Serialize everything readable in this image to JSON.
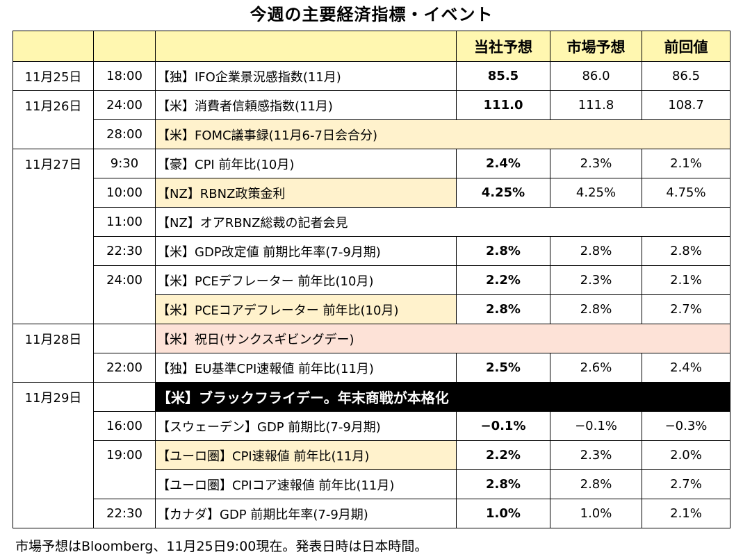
{
  "title": "今週の主要経済指標・イベント",
  "header": {
    "own_forecast": "当社予想",
    "market_forecast": "市場予想",
    "previous": "前回値"
  },
  "rows": [
    {
      "date": "11月25日",
      "time": "18:00",
      "event": "【独】IFO企業景況感指数(11月)",
      "own": "85.5",
      "market": "86.0",
      "prev": "86.5",
      "style": "normal"
    },
    {
      "date": "11月26日",
      "time": "24:00",
      "event": "【米】消費者信頼感指数(11月)",
      "own": "111.0",
      "market": "111.8",
      "prev": "108.7",
      "style": "normal"
    },
    {
      "date": "",
      "time": "28:00",
      "event": "【米】FOMC議事録(11月6-7日会合分)",
      "own": "",
      "market": "",
      "prev": "",
      "style": "yellow-span"
    },
    {
      "date": "11月27日",
      "time": "9:30",
      "event": "【豪】CPI 前年比(10月)",
      "own": "2.4%",
      "market": "2.3%",
      "prev": "2.1%",
      "style": "normal"
    },
    {
      "date": "",
      "time": "10:00",
      "event": "【NZ】RBNZ政策金利",
      "own": "4.25%",
      "market": "4.25%",
      "prev": "4.75%",
      "style": "yellow"
    },
    {
      "date": "",
      "time": "11:00",
      "event": "【NZ】オアRBNZ総裁の記者会見",
      "own": "",
      "market": "",
      "prev": "",
      "style": "span"
    },
    {
      "date": "",
      "time": "22:30",
      "event": "【米】GDP改定値 前期比年率(7-9月期)",
      "own": "2.8%",
      "market": "2.8%",
      "prev": "2.8%",
      "style": "normal"
    },
    {
      "date": "",
      "time": "24:00",
      "event": "【米】PCEデフレーター 前年比(10月)",
      "own": "2.2%",
      "market": "2.3%",
      "prev": "2.1%",
      "style": "normal"
    },
    {
      "date": "",
      "time": "",
      "event": "【米】PCEコアデフレーター 前年比(10月)",
      "own": "2.8%",
      "market": "2.8%",
      "prev": "2.7%",
      "style": "yellow"
    },
    {
      "date": "11月28日",
      "time": "",
      "event": "【米】祝日(サンクスギビングデー)",
      "own": "",
      "market": "",
      "prev": "",
      "style": "peach-span"
    },
    {
      "date": "",
      "time": "22:00",
      "event": "【独】EU基準CPI速報値 前年比(11月)",
      "own": "2.5%",
      "market": "2.6%",
      "prev": "2.4%",
      "style": "normal"
    },
    {
      "date": "11月29日",
      "time": "",
      "event": "【米】ブラックフライデー。年末商戦が本格化",
      "own": "",
      "market": "",
      "prev": "",
      "style": "black-span"
    },
    {
      "date": "",
      "time": "16:00",
      "event": "【スウェーデン】GDP 前期比(7-9月期)",
      "own": "−0.1%",
      "market": "−0.1%",
      "prev": "−0.3%",
      "style": "normal"
    },
    {
      "date": "",
      "time": "19:00",
      "event": "【ユーロ圏】CPI速報値 前年比(11月)",
      "own": "2.2%",
      "market": "2.3%",
      "prev": "2.0%",
      "style": "yellow"
    },
    {
      "date": "",
      "time": "",
      "event": "【ユーロ圏】CPIコア速報値 前年比(11月)",
      "own": "2.8%",
      "market": "2.8%",
      "prev": "2.7%",
      "style": "normal"
    },
    {
      "date": "",
      "time": "22:30",
      "event": "【カナダ】GDP 前期比年率(7-9月期)",
      "own": "1.0%",
      "market": "1.0%",
      "prev": "2.1%",
      "style": "normal"
    }
  ],
  "footnote": "市場予想はBloomberg、11月25日9:00現在。発表日時は日本時間。"
}
